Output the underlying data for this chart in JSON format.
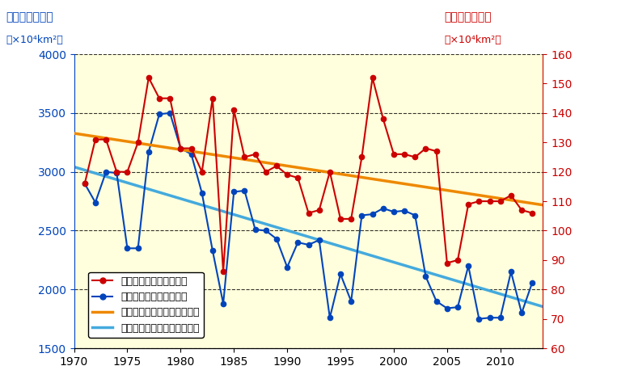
{
  "years": [
    1971,
    1972,
    1973,
    1974,
    1975,
    1976,
    1977,
    1978,
    1979,
    1980,
    1981,
    1982,
    1983,
    1984,
    1985,
    1986,
    1987,
    1988,
    1989,
    1990,
    1991,
    1992,
    1993,
    1994,
    1995,
    1996,
    1997,
    1998,
    1999,
    2000,
    2001,
    2002,
    2003,
    2004,
    2005,
    2006,
    2007,
    2008,
    2009,
    2010,
    2011,
    2012,
    2013
  ],
  "max_ice": [
    116,
    131,
    131,
    120,
    120,
    130,
    152,
    145,
    145,
    128,
    128,
    120,
    145,
    86,
    141,
    125,
    126,
    120,
    122,
    119,
    118,
    106,
    107,
    120,
    104,
    104,
    125,
    152,
    138,
    126,
    126,
    125,
    128,
    127,
    89,
    90,
    109,
    110,
    110,
    110,
    112,
    107,
    106
  ],
  "accum_ice": [
    2900,
    2740,
    3000,
    2990,
    2350,
    2350,
    3170,
    3490,
    3500,
    3200,
    3150,
    2820,
    2330,
    1880,
    2830,
    2840,
    2510,
    2500,
    2430,
    2190,
    2400,
    2380,
    2420,
    1760,
    2130,
    1900,
    2630,
    2640,
    2690,
    2660,
    2670,
    2630,
    2110,
    1900,
    1840,
    1850,
    2200,
    1750,
    1760,
    1760,
    2150,
    1800,
    2060
  ],
  "plot_area_bg": "#ffffdd",
  "fig_bg": "#ffffff",
  "red_color": "#cc0000",
  "blue_color": "#0044bb",
  "orange_color": "#ee8800",
  "cyan_color": "#44aadd",
  "left_ylim": [
    1500,
    4000
  ],
  "right_ylim": [
    60,
    160
  ],
  "xlim": [
    1970,
    2014
  ],
  "left_yticks": [
    1500,
    2000,
    2500,
    3000,
    3500,
    4000
  ],
  "right_yticks": [
    60,
    70,
    80,
    90,
    100,
    110,
    120,
    130,
    140,
    150,
    160
  ],
  "xticks": [
    1970,
    1975,
    1980,
    1985,
    1990,
    1995,
    2000,
    2005,
    2010
  ],
  "left_ylabel_top": "積算海氷域面積",
  "left_ylabel_unit": "（×10⁴km²）",
  "right_ylabel_top": "最大海氷域面積",
  "right_ylabel_unit": "（×10⁴km²）",
  "legend_max": "最大海氷域面積（右軸）",
  "legend_accum": "積算海氷域面積（左軸）",
  "legend_trend_max": "最大海氷域面積（変化傾向）",
  "legend_trend_accum": "積算海氷域面積（変化傾向）"
}
